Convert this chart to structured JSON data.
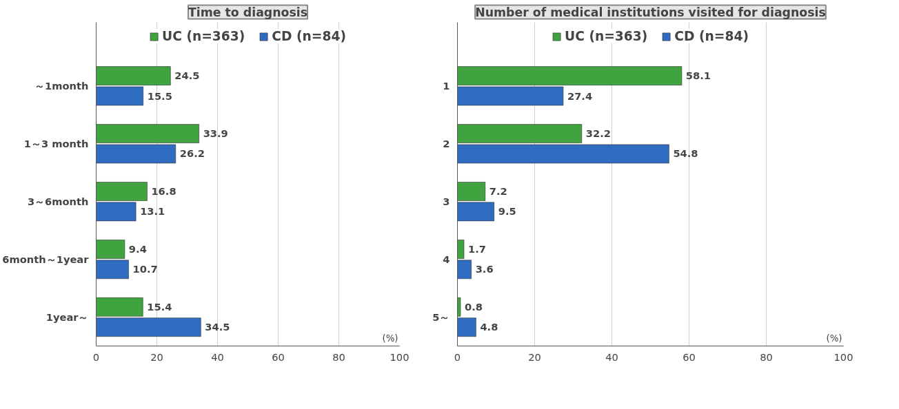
{
  "chart_data": [
    {
      "type": "bar",
      "orientation": "horizontal",
      "title": "Time to diagnosis",
      "categories": [
        "～1month",
        "1～3 month",
        "3～6month",
        "6month～1year",
        "1year～"
      ],
      "series": [
        {
          "name": "UC (n=363)",
          "color": "#3fa33f",
          "values": [
            24.5,
            33.9,
            16.8,
            9.4,
            15.4
          ]
        },
        {
          "name": "CD (n=84)",
          "color": "#2f6cc0",
          "values": [
            15.5,
            26.2,
            13.1,
            10.7,
            34.5
          ]
        }
      ],
      "xlim": [
        0,
        100
      ],
      "xticks": [
        0,
        20,
        40,
        60,
        80,
        100
      ],
      "grid": "x",
      "legend": "top",
      "data_labels": true,
      "annotations": [
        "(%)"
      ]
    },
    {
      "type": "bar",
      "orientation": "horizontal",
      "title": "Number of medical institutions visited for diagnosis",
      "categories": [
        "1",
        "2",
        "3",
        "4",
        "5～"
      ],
      "series": [
        {
          "name": "UC (n=363)",
          "color": "#3fa33f",
          "values": [
            58.1,
            32.2,
            7.2,
            1.7,
            0.8
          ]
        },
        {
          "name": "CD (n=84)",
          "color": "#2f6cc0",
          "values": [
            27.4,
            54.8,
            9.5,
            3.6,
            4.8
          ]
        }
      ],
      "xlim": [
        0,
        100
      ],
      "xticks": [
        0,
        20,
        40,
        60,
        80,
        100
      ],
      "grid": "x",
      "legend": "top",
      "data_labels": true,
      "annotations": [
        "(%)"
      ]
    }
  ]
}
